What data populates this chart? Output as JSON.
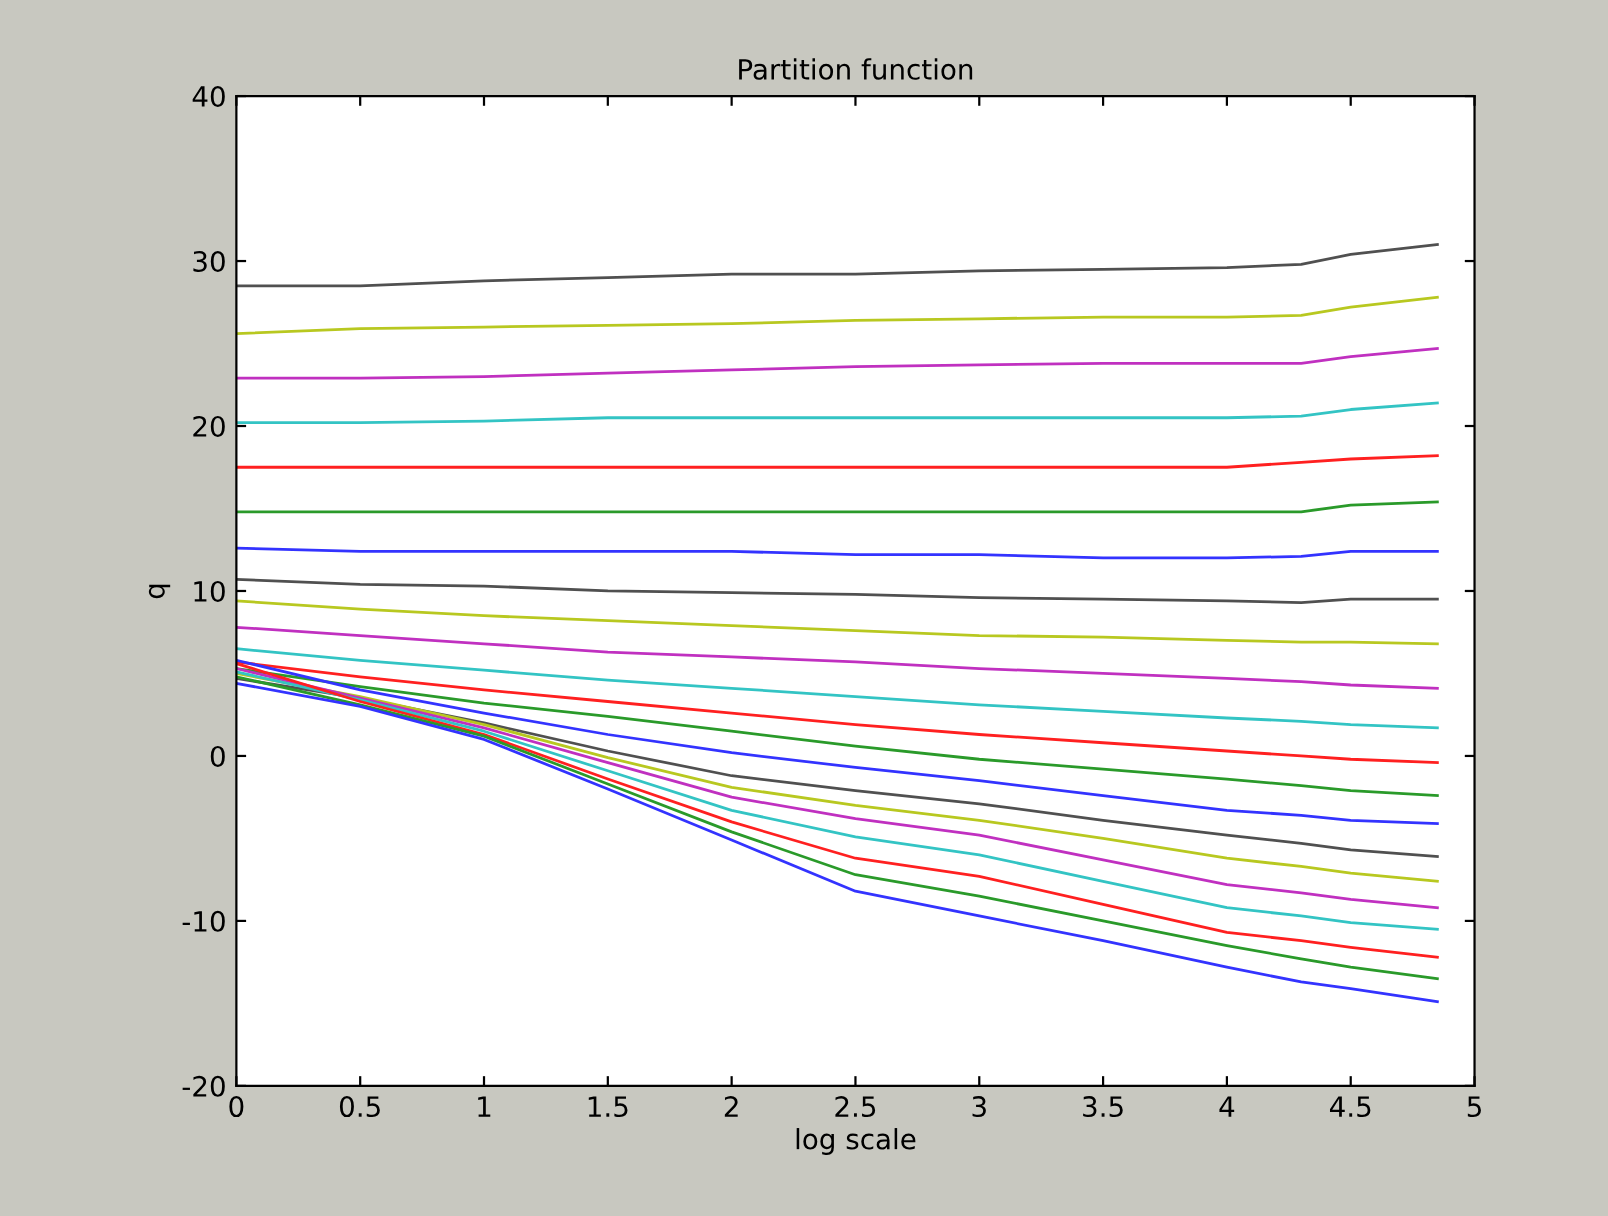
{
  "chart_data": {
    "type": "line",
    "title": "Partition function",
    "xlabel": "log scale",
    "ylabel": "q",
    "x": [
      0,
      0.5,
      1,
      1.5,
      2,
      2.5,
      3,
      3.5,
      4,
      4.3,
      4.5,
      4.85
    ],
    "xlim": [
      0,
      5
    ],
    "xticks": [
      0,
      0.5,
      1,
      1.5,
      2,
      2.5,
      3,
      3.5,
      4,
      4.5,
      5
    ],
    "ylim": [
      -20,
      40
    ],
    "yticks": [
      -20,
      -10,
      0,
      10,
      20,
      30,
      40
    ],
    "grid": false,
    "marker": "none",
    "line_style": "solid",
    "series": [
      {
        "color": "#505050",
        "values": [
          28.5,
          28.5,
          28.8,
          29.0,
          29.2,
          29.2,
          29.4,
          29.5,
          29.6,
          29.8,
          30.4,
          31.0
        ]
      },
      {
        "color": "#b8c820",
        "values": [
          25.6,
          25.9,
          26.0,
          26.1,
          26.2,
          26.4,
          26.5,
          26.6,
          26.6,
          26.7,
          27.2,
          27.8
        ]
      },
      {
        "color": "#c030c0",
        "values": [
          22.9,
          22.9,
          23.0,
          23.2,
          23.4,
          23.6,
          23.7,
          23.8,
          23.8,
          23.8,
          24.2,
          24.7
        ]
      },
      {
        "color": "#33c4c4",
        "values": [
          20.2,
          20.2,
          20.3,
          20.5,
          20.5,
          20.5,
          20.5,
          20.5,
          20.5,
          20.6,
          21.0,
          21.4
        ]
      },
      {
        "color": "#ff2020",
        "values": [
          17.5,
          17.5,
          17.5,
          17.5,
          17.5,
          17.5,
          17.5,
          17.5,
          17.5,
          17.8,
          18.0,
          18.2
        ]
      },
      {
        "color": "#2a9a2a",
        "values": [
          14.8,
          14.8,
          14.8,
          14.8,
          14.8,
          14.8,
          14.8,
          14.8,
          14.8,
          14.8,
          15.2,
          15.4
        ]
      },
      {
        "color": "#3333ff",
        "values": [
          12.6,
          12.4,
          12.4,
          12.4,
          12.4,
          12.2,
          12.2,
          12.0,
          12.0,
          12.1,
          12.4,
          12.4
        ]
      },
      {
        "color": "#505050",
        "values": [
          10.7,
          10.4,
          10.3,
          10.0,
          9.9,
          9.8,
          9.6,
          9.5,
          9.4,
          9.3,
          9.5,
          9.5
        ]
      },
      {
        "color": "#b8c820",
        "values": [
          9.4,
          8.9,
          8.5,
          8.2,
          7.9,
          7.6,
          7.3,
          7.2,
          7.0,
          6.9,
          6.9,
          6.8
        ]
      },
      {
        "color": "#c030c0",
        "values": [
          7.8,
          7.3,
          6.8,
          6.3,
          6.0,
          5.7,
          5.3,
          5.0,
          4.7,
          4.5,
          4.3,
          4.1
        ]
      },
      {
        "color": "#33c4c4",
        "values": [
          6.5,
          5.8,
          5.2,
          4.6,
          4.1,
          3.6,
          3.1,
          2.7,
          2.3,
          2.1,
          1.9,
          1.7
        ]
      },
      {
        "color": "#ff2020",
        "values": [
          5.7,
          4.8,
          4.0,
          3.3,
          2.6,
          1.9,
          1.3,
          0.8,
          0.3,
          0.0,
          -0.2,
          -0.4
        ]
      },
      {
        "color": "#2a9a2a",
        "values": [
          5.3,
          4.2,
          3.2,
          2.4,
          1.5,
          0.6,
          -0.2,
          -0.8,
          -1.4,
          -1.8,
          -2.1,
          -2.4
        ]
      },
      {
        "color": "#3333ff",
        "values": [
          5.8,
          4.0,
          2.6,
          1.3,
          0.2,
          -0.7,
          -1.5,
          -2.4,
          -3.3,
          -3.6,
          -3.9,
          -4.1
        ]
      },
      {
        "color": "#505050",
        "values": [
          4.7,
          3.5,
          2.0,
          0.3,
          -1.2,
          -2.1,
          -2.9,
          -3.9,
          -4.8,
          -5.3,
          -5.7,
          -6.1
        ]
      },
      {
        "color": "#b8c820",
        "values": [
          5.0,
          3.6,
          1.9,
          -0.1,
          -1.9,
          -3.0,
          -3.9,
          -5.0,
          -6.2,
          -6.7,
          -7.1,
          -7.6
        ]
      },
      {
        "color": "#c030c0",
        "values": [
          5.3,
          3.5,
          1.7,
          -0.4,
          -2.5,
          -3.8,
          -4.8,
          -6.3,
          -7.8,
          -8.3,
          -8.7,
          -9.2
        ]
      },
      {
        "color": "#33c4c4",
        "values": [
          5.1,
          3.4,
          1.5,
          -0.9,
          -3.3,
          -4.9,
          -6.0,
          -7.6,
          -9.2,
          -9.7,
          -10.1,
          -10.5
        ]
      },
      {
        "color": "#ff2020",
        "values": [
          5.6,
          3.3,
          1.3,
          -1.4,
          -4.0,
          -6.2,
          -7.3,
          -9.0,
          -10.7,
          -11.2,
          -11.6,
          -12.2
        ]
      },
      {
        "color": "#2a9a2a",
        "values": [
          4.8,
          3.1,
          1.2,
          -1.7,
          -4.6,
          -7.2,
          -8.5,
          -10.0,
          -11.5,
          -12.3,
          -12.8,
          -13.5
        ]
      },
      {
        "color": "#3333ff",
        "values": [
          4.4,
          3.0,
          1.0,
          -2.0,
          -5.1,
          -8.2,
          -9.7,
          -11.2,
          -12.8,
          -13.7,
          -14.1,
          -14.9
        ]
      }
    ]
  }
}
